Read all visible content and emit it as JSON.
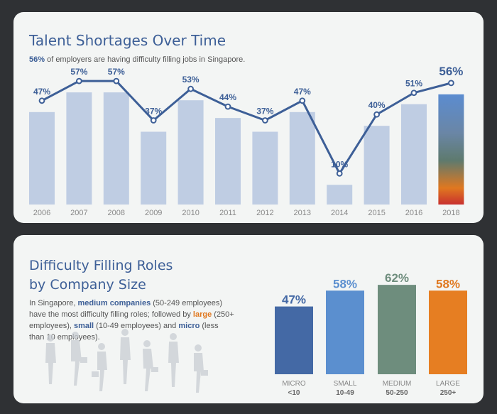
{
  "section1": {
    "title": "Talent Shortages Over Time",
    "subtitle_highlight": "56%",
    "subtitle_rest": " of employers are having difficulty filling jobs in Singapore."
  },
  "section2": {
    "title_line1": "Difficulty Filling Roles",
    "title_line2": "by Company Size",
    "desc": {
      "p1": "In Singapore, ",
      "k1": "medium companies",
      "p2": " (50-249 employees) have the most difficulty filling roles; followed by ",
      "k2": "large",
      "p3": " (250+ employees), ",
      "k3": "small",
      "p4": " (10-49 employees) and ",
      "k4": "micro",
      "p5": " (less than 10 employees)."
    }
  },
  "colors": {
    "bar": "#bfcde3",
    "line": "#3d5f97",
    "micro": "#4469a5",
    "small": "#5b8fcf",
    "medium": "#6e8d7d",
    "large": "#e67e22",
    "large_label": "#e0781f"
  },
  "chart_data": [
    {
      "type": "bar",
      "categories": [
        "2006",
        "2007",
        "2008",
        "2009",
        "2010",
        "2011",
        "2012",
        "2013",
        "2014",
        "2015",
        "2016",
        "2018"
      ],
      "values": [
        47,
        57,
        57,
        37,
        53,
        44,
        37,
        47,
        10,
        40,
        51,
        56
      ],
      "labels": [
        "47%",
        "57%",
        "57%",
        "37%",
        "53%",
        "44%",
        "37%",
        "47%",
        "10%",
        "40%",
        "51%",
        "56%"
      ],
      "ylim": [
        0,
        100
      ],
      "overlay": "line",
      "highlight": "2018"
    },
    {
      "type": "bar",
      "categories": [
        "MICRO",
        "SMALL",
        "MEDIUM",
        "LARGE"
      ],
      "sublabels": [
        "<10",
        "10-49",
        "50-250",
        "250+"
      ],
      "values": [
        47,
        58,
        62,
        58
      ],
      "labels": [
        "47%",
        "58%",
        "62%",
        "58%"
      ],
      "ylim": [
        0,
        100
      ]
    }
  ]
}
